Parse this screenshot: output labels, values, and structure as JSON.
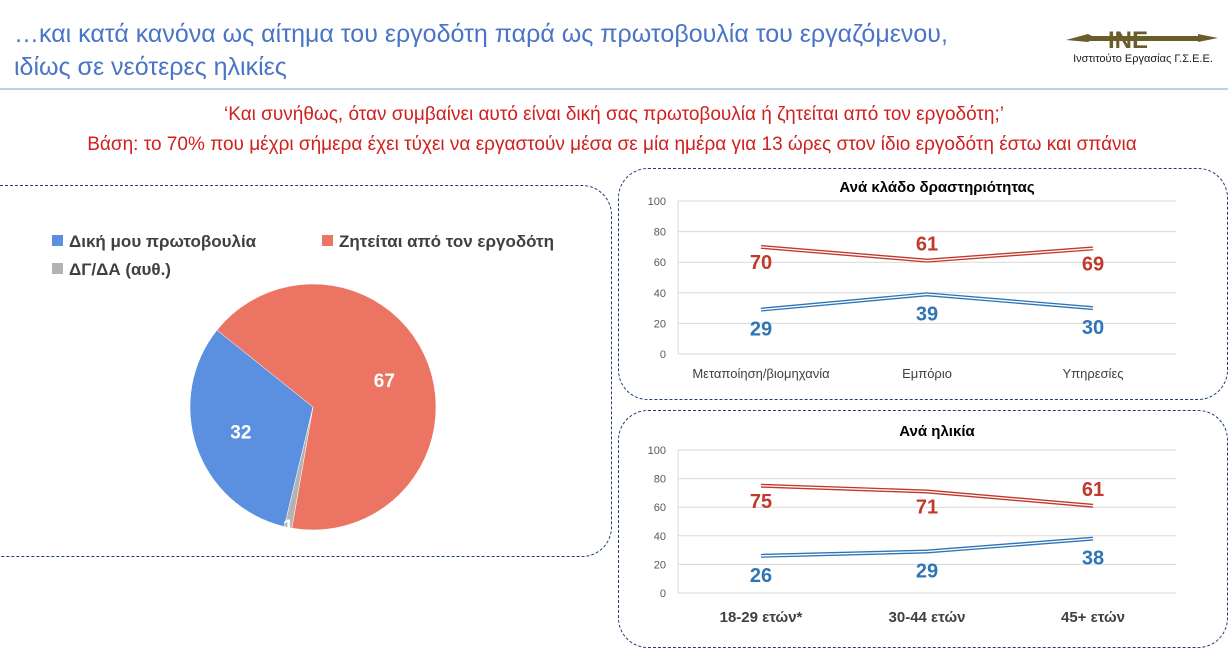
{
  "header": {
    "title_line1": "…και κατά κανόνα ως αίτημα του εργοδότη παρά ως πρωτοβουλία του εργαζόμενου,",
    "title_line2": "ιδίως σε νεότερες ηλικίες",
    "logo_text": "ΙΝΕ",
    "logo_caption": "Ινστιτούτο Εργασίας Γ.Σ.Ε.Ε."
  },
  "question": "‘Και συνήθως, όταν συμβαίνει αυτό είναι δική σας πρωτοβουλία ή ζητείται από τον εργοδότη;’",
  "base": "Βάση: το 70% που μέχρι σήμερα έχει τύχει να εργαστούν μέσα σε μία ημέρα για 13 ώρες στον ίδιο εργοδότη έστω και σπάνια",
  "colors": {
    "own": "#5b8fe0",
    "employer": "#eb7462",
    "dk": "#b3b3b3",
    "blue_line": "#2e75b6",
    "red_line": "#c0392b"
  },
  "chart_data": [
    {
      "type": "pie",
      "title": "",
      "legend": [
        "Δική μου πρωτοβουλία",
        "Ζητείται από τον εργοδότη",
        "ΔΓ/ΔΑ (αυθ.)"
      ],
      "legend_position": "top",
      "values": [
        32,
        67,
        1
      ],
      "labels": [
        "32",
        "67",
        "1"
      ]
    },
    {
      "type": "line",
      "title": "Ανά κλάδο δραστηριότητας",
      "categories": [
        "Μεταποίηση/βιομηχανία",
        "Εμπόριο",
        "Υπηρεσίες"
      ],
      "ylim": [
        0,
        100
      ],
      "yticks": [
        "0",
        "20",
        "40",
        "60",
        "80",
        "100"
      ],
      "series": [
        {
          "key": "employer",
          "values": [
            70,
            61,
            69
          ]
        },
        {
          "key": "own",
          "values": [
            29,
            39,
            30
          ]
        }
      ]
    },
    {
      "type": "line",
      "title": "Ανά ηλικία",
      "categories": [
        "18-29 ετών*",
        "30-44 ετών",
        "45+ ετών"
      ],
      "ylim": [
        0,
        100
      ],
      "yticks": [
        "0",
        "20",
        "40",
        "60",
        "80",
        "100"
      ],
      "series": [
        {
          "key": "employer",
          "values": [
            75,
            71,
            61
          ]
        },
        {
          "key": "own",
          "values": [
            26,
            29,
            38
          ]
        }
      ]
    }
  ]
}
